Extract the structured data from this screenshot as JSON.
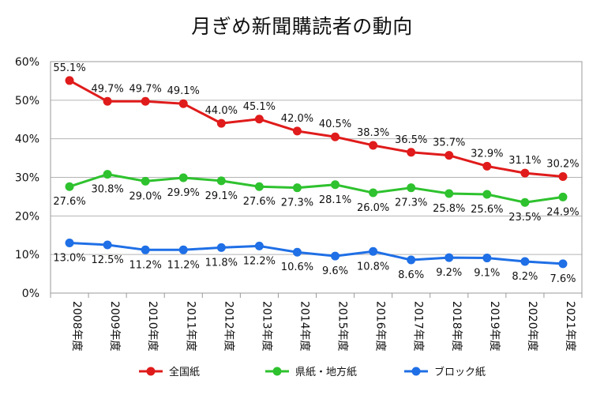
{
  "chart_data": {
    "type": "line",
    "title": "月ぎめ新聞購読者の動向",
    "xlabel": "",
    "ylabel": "",
    "categories": [
      "2008年度",
      "2009年度",
      "2010年度",
      "2011年度",
      "2012年度",
      "2013年度",
      "2014年度",
      "2015年度",
      "2016年度",
      "2017年度",
      "2018年度",
      "2019年度",
      "2020年度",
      "2021年度"
    ],
    "ylim": [
      0,
      60
    ],
    "yticks": [
      "0%",
      "10%",
      "20%",
      "30%",
      "40%",
      "50%",
      "60%"
    ],
    "grid": true,
    "legend_position": "bottom",
    "series": [
      {
        "name": "全国紙",
        "color": "#e01b1b",
        "values": [
          55.1,
          49.7,
          49.7,
          49.1,
          44.0,
          45.1,
          42.0,
          40.5,
          38.3,
          36.5,
          35.7,
          32.9,
          31.1,
          30.2
        ],
        "labels": [
          "55.1%",
          "49.7%",
          "49.7%",
          "49.1%",
          "44.0%",
          "45.1%",
          "42.0%",
          "40.5%",
          "38.3%",
          "36.5%",
          "35.7%",
          "32.9%",
          "31.1%",
          "30.2%"
        ]
      },
      {
        "name": "県紙・地方紙",
        "color": "#2ec22e",
        "values": [
          27.6,
          30.8,
          29.0,
          29.9,
          29.1,
          27.6,
          27.3,
          28.1,
          26.0,
          27.3,
          25.8,
          25.6,
          23.5,
          24.9
        ],
        "labels": [
          "27.6%",
          "30.8%",
          "29.0%",
          "29.9%",
          "29.1%",
          "27.6%",
          "27.3%",
          "28.1%",
          "26.0%",
          "27.3%",
          "25.8%",
          "25.6%",
          "23.5%",
          "24.9%"
        ]
      },
      {
        "name": "ブロック紙",
        "color": "#1f6fe6",
        "values": [
          13.0,
          12.5,
          11.2,
          11.2,
          11.8,
          12.2,
          10.6,
          9.6,
          10.8,
          8.6,
          9.2,
          9.1,
          8.2,
          7.6
        ],
        "labels": [
          "13.0%",
          "12.5%",
          "11.2%",
          "11.2%",
          "11.8%",
          "12.2%",
          "10.6%",
          "9.6%",
          "10.8%",
          "8.6%",
          "9.2%",
          "9.1%",
          "8.2%",
          "7.6%"
        ]
      }
    ]
  }
}
